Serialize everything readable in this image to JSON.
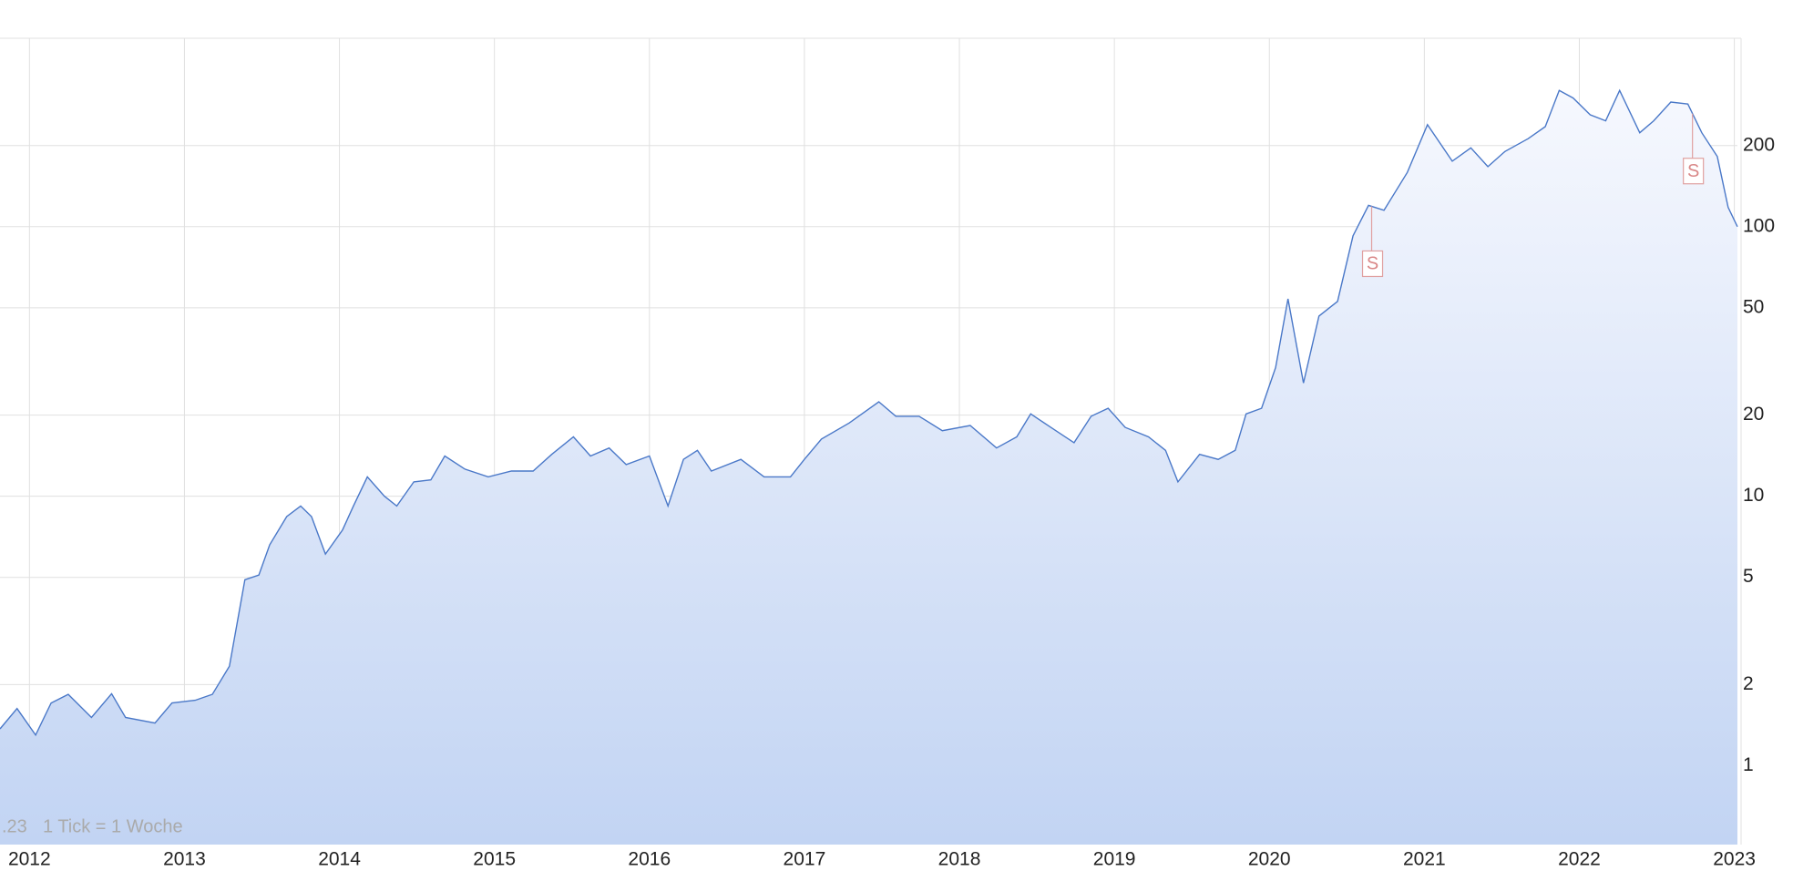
{
  "chart_data": {
    "type": "area",
    "note": "1 Tick = 1 Woche",
    "fragment": ".23",
    "log_scale": true,
    "grid": true,
    "color": "#4a78c8",
    "xlim": [
      2011.81,
      2023.02
    ],
    "xticks": [
      2012,
      2013,
      2014,
      2015,
      2016,
      2017,
      2018,
      2019,
      2020,
      2021,
      2022,
      2023
    ],
    "ylim": [
      0.51,
      500
    ],
    "yticks": [
      1,
      2,
      5,
      10,
      20,
      50,
      100,
      200
    ],
    "x": [
      2011.81,
      2011.92,
      2012.04,
      2012.14,
      2012.25,
      2012.4,
      2012.53,
      2012.62,
      2012.81,
      2012.92,
      2013.07,
      2013.18,
      2013.29,
      2013.39,
      2013.48,
      2013.55,
      2013.66,
      2013.75,
      2013.82,
      2013.91,
      2014.02,
      2014.09,
      2014.18,
      2014.29,
      2014.37,
      2014.48,
      2014.59,
      2014.68,
      2014.81,
      2014.96,
      2015.11,
      2015.25,
      2015.37,
      2015.51,
      2015.62,
      2015.74,
      2015.85,
      2016.0,
      2016.12,
      2016.22,
      2016.31,
      2016.4,
      2016.59,
      2016.74,
      2016.91,
      2017.0,
      2017.11,
      2017.29,
      2017.48,
      2017.59,
      2017.74,
      2017.89,
      2018.07,
      2018.24,
      2018.37,
      2018.46,
      2018.59,
      2018.74,
      2018.85,
      2018.96,
      2019.07,
      2019.22,
      2019.33,
      2019.41,
      2019.55,
      2019.67,
      2019.78,
      2019.85,
      2019.95,
      2020.04,
      2020.12,
      2020.22,
      2020.32,
      2020.44,
      2020.54,
      2020.64,
      2020.74,
      2020.89,
      2021.02,
      2021.18,
      2021.3,
      2021.41,
      2021.52,
      2021.67,
      2021.78,
      2021.87,
      2021.96,
      2022.07,
      2022.17,
      2022.26,
      2022.39,
      2022.48,
      2022.59,
      2022.7,
      2022.79,
      2022.89,
      2022.96,
      2023.02
    ],
    "values": [
      1.37,
      1.63,
      1.3,
      1.71,
      1.84,
      1.51,
      1.85,
      1.51,
      1.44,
      1.71,
      1.75,
      1.84,
      2.34,
      4.9,
      5.1,
      6.6,
      8.4,
      9.2,
      8.4,
      6.1,
      7.5,
      9.2,
      11.8,
      10,
      9.2,
      11.3,
      11.5,
      14.1,
      12.6,
      11.8,
      12.4,
      12.4,
      14.3,
      16.6,
      14.1,
      15.1,
      13.1,
      14.1,
      9.2,
      13.7,
      14.8,
      12.4,
      13.7,
      11.8,
      11.8,
      13.7,
      16.3,
      18.7,
      22.4,
      19.8,
      19.8,
      17.5,
      18.3,
      15.1,
      16.6,
      20.2,
      18.0,
      15.8,
      19.8,
      21.2,
      18.0,
      16.6,
      14.8,
      11.3,
      14.3,
      13.7,
      14.8,
      20.2,
      21.2,
      30,
      54,
      26.3,
      46.6,
      52.8,
      92.5,
      120,
      115,
      159,
      239,
      175,
      196,
      167,
      190,
      212,
      235,
      320,
      300,
      260,
      247,
      320,
      223,
      247,
      290,
      285,
      223,
      182,
      118,
      100
    ],
    "events": [
      {
        "x": 2020.66,
        "label": "S"
      },
      {
        "x": 2022.73,
        "label": "S"
      }
    ]
  }
}
